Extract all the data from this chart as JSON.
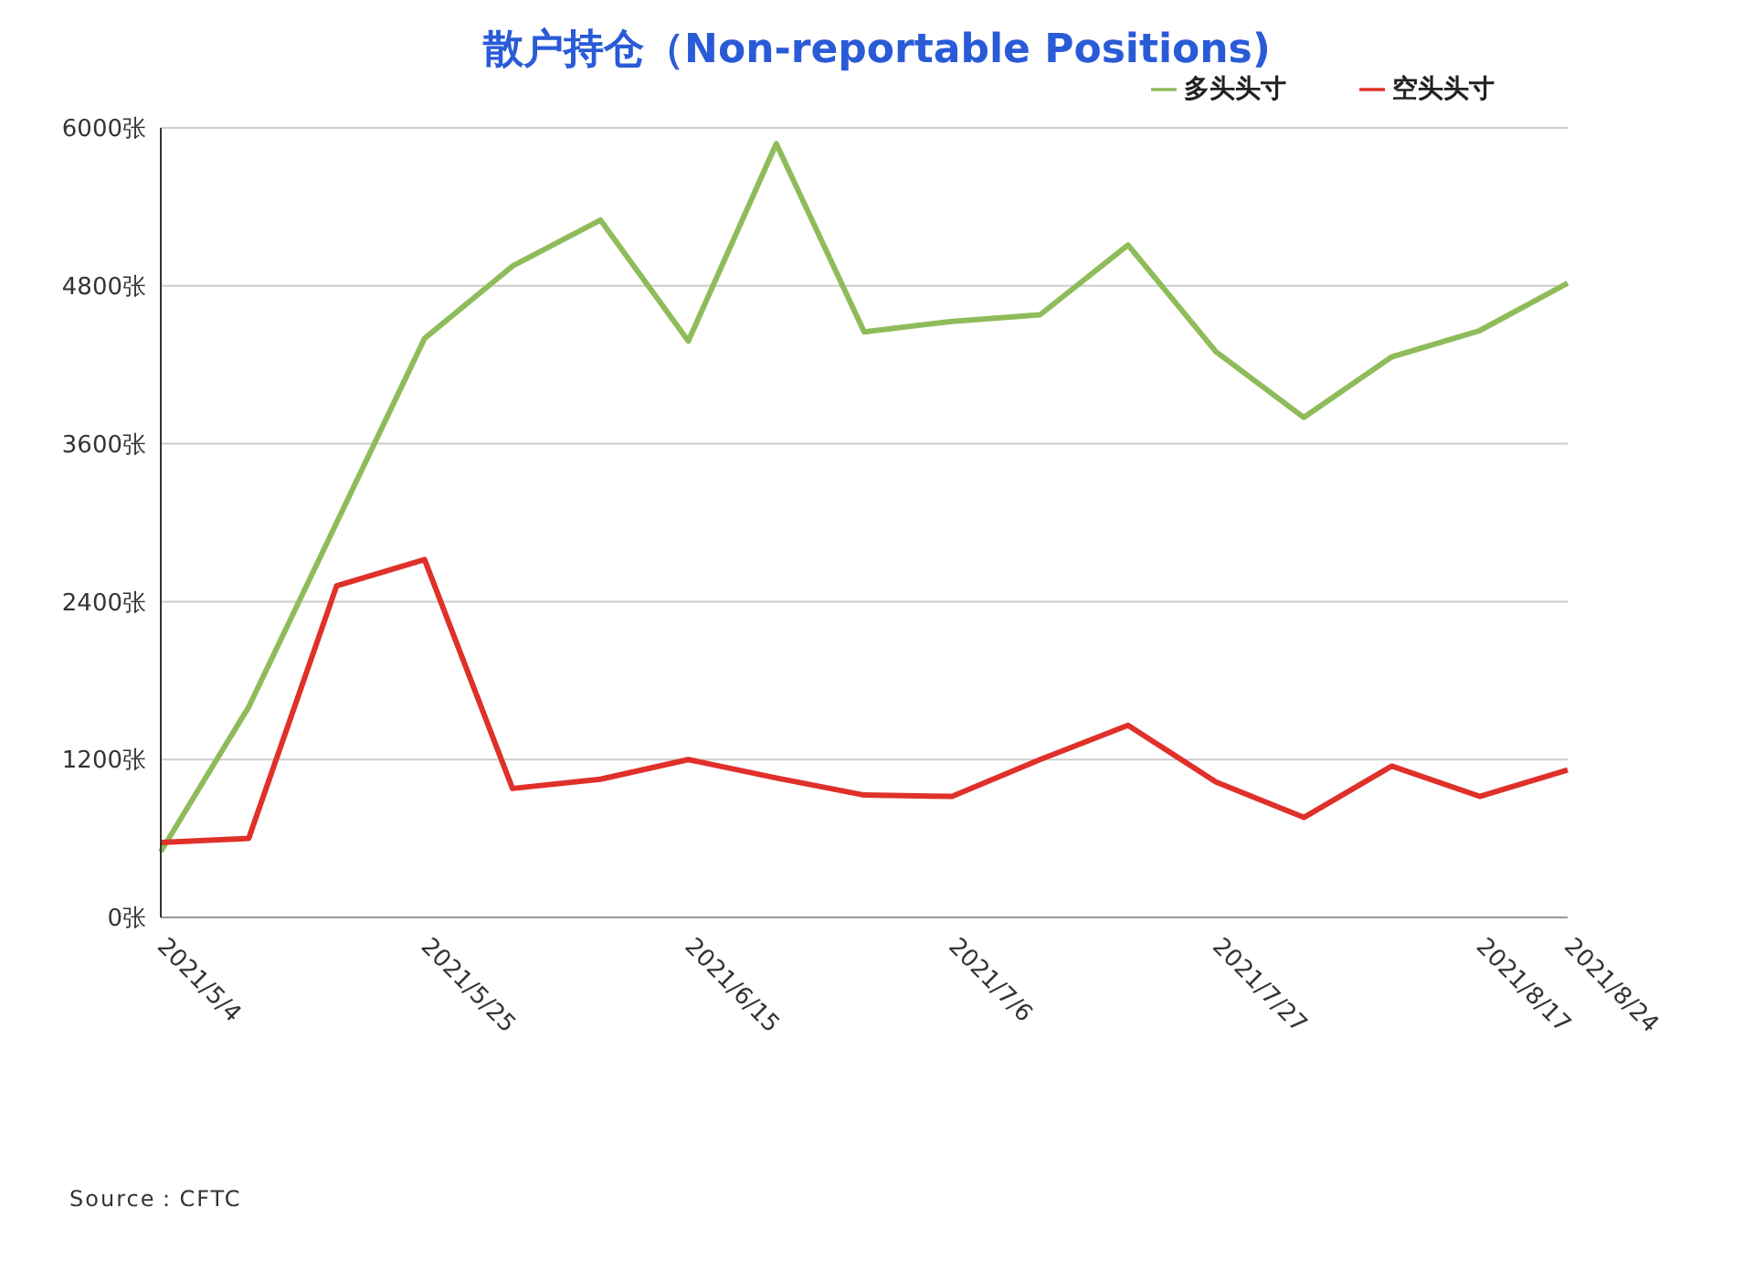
{
  "chart_data": {
    "type": "line",
    "title": "散户持仓（Non-reportable Positions)",
    "categories": [
      "2021/5/4",
      null,
      null,
      "2021/5/25",
      null,
      null,
      "2021/6/15",
      null,
      null,
      "2021/7/6",
      null,
      null,
      "2021/7/27",
      null,
      null,
      "2021/8/17",
      "2021/8/24"
    ],
    "series": [
      {
        "name": "多头头寸",
        "color": "#8fbc5a",
        "values": [
          500,
          1600,
          3000,
          4400,
          4950,
          5300,
          4380,
          5880,
          4450,
          4530,
          4580,
          5110,
          4300,
          3800,
          4260,
          4460,
          4820
        ]
      },
      {
        "name": "空头头寸",
        "color": "#e0302a",
        "values": [
          570,
          600,
          2520,
          2720,
          980,
          1050,
          1200,
          1060,
          930,
          920,
          1200,
          1460,
          1030,
          760,
          1150,
          920,
          1120
        ]
      }
    ],
    "ylim": [
      0,
      6000
    ],
    "yticks": [
      {
        "value": 0,
        "label": "0张"
      },
      {
        "value": 1200,
        "label": "1200张"
      },
      {
        "value": 2400,
        "label": "2400张"
      },
      {
        "value": 3600,
        "label": "3600张"
      },
      {
        "value": 4800,
        "label": "4800张"
      },
      {
        "value": 6000,
        "label": "6000张"
      }
    ],
    "grid": "y",
    "legend": "top right",
    "marker": "none",
    "line_style": "solid",
    "annotations": [
      "Source：CFTC"
    ]
  }
}
